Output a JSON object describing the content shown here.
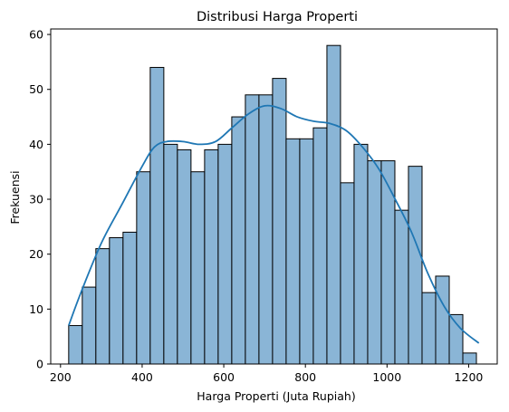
{
  "chart_data": {
    "type": "bar",
    "subtype": "histogram-with-kde",
    "title": "Distribusi Harga Properti",
    "xlabel": "Harga Properti (Juta Rupiah)",
    "ylabel": "Frekuensi",
    "xlim": [
      176,
      1270
    ],
    "ylim": [
      0,
      61
    ],
    "xticks": [
      200,
      400,
      600,
      800,
      1000,
      1200
    ],
    "yticks": [
      0,
      10,
      20,
      30,
      40,
      50,
      60
    ],
    "grid": false,
    "legend": "none",
    "bin_start": 220,
    "bin_width": 33.3,
    "bins": 30,
    "values": [
      7,
      14,
      21,
      23,
      24,
      35,
      54,
      40,
      39,
      35,
      39,
      40,
      45,
      49,
      49,
      52,
      41,
      41,
      43,
      58,
      33,
      40,
      37,
      37,
      28,
      36,
      13,
      16,
      9,
      2
    ],
    "kde": {
      "x": [
        220,
        250,
        300,
        350,
        400,
        430,
        460,
        500,
        540,
        580,
        620,
        660,
        700,
        740,
        780,
        820,
        860,
        900,
        940,
        980,
        1020,
        1060,
        1100,
        1140,
        1180,
        1225
      ],
      "y": [
        7,
        13,
        22,
        29,
        36,
        39.5,
        40.5,
        40.5,
        40.0,
        40.5,
        43,
        45.5,
        47,
        46.5,
        45,
        44.2,
        43.8,
        42.5,
        39.5,
        35.5,
        30,
        24,
        16.5,
        10.5,
        6.5,
        3.8
      ]
    },
    "colors": {
      "bar_fill": "#8ab5d6",
      "bar_edge": "#000000",
      "kde_line": "#1f77b4"
    }
  }
}
